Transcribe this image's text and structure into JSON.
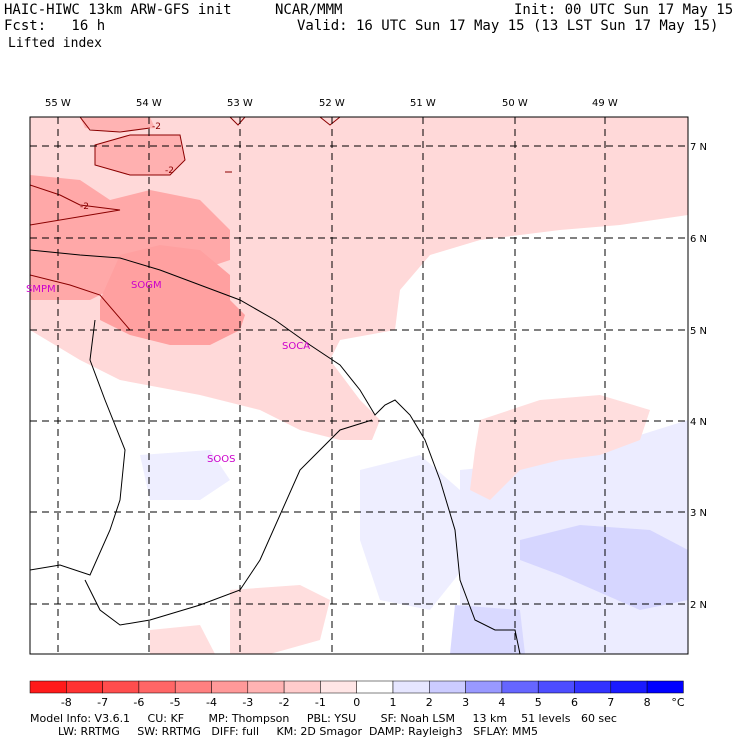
{
  "header": {
    "model": "HAIC-HIWC 13km ARW-GFS init",
    "org": "NCAR/MMM",
    "init": "Init: 00 UTC Sun 17 May 15",
    "fcst": "Fcst:   16 h",
    "valid": "Valid: 16 UTC Sun 17 May 15 (13 LST Sun 17 May 15)",
    "field": "Lifted index"
  },
  "map": {
    "lon_labels": [
      "55 W",
      "54 W",
      "53 W",
      "52 W",
      "51 W",
      "50 W",
      "49 W"
    ],
    "lat_labels": [
      "7 N",
      "6 N",
      "5 N",
      "4 N",
      "3 N",
      "2 N"
    ],
    "stations": [
      "SMPM",
      "SOGM",
      "SOCA",
      "SOOS"
    ],
    "contour_labels": [
      "-2",
      "-2",
      "-2"
    ]
  },
  "colorbar": {
    "labels": [
      "-8",
      "-7",
      "-6",
      "-5",
      "-4",
      "-3",
      "-2",
      "-1",
      "0",
      "1",
      "2",
      "3",
      "4",
      "5",
      "6",
      "7",
      "8"
    ],
    "unit": "°C",
    "colors": [
      "#ff1a1a",
      "#ff3333",
      "#ff4d4d",
      "#ff6666",
      "#ff8080",
      "#ff9999",
      "#ffb3b3",
      "#ffcccc",
      "#ffe6e6",
      "#ffffff",
      "#e6e6ff",
      "#ccccff",
      "#9999ff",
      "#6666ff",
      "#4d4dff",
      "#3333ff",
      "#1a1aff",
      "#0000ff"
    ]
  },
  "footer": {
    "line1": "Model Info: V3.6.1     CU: KF       MP: Thompson     PBL: YSU       SF: Noah LSM     13 km    51 levels   60 sec",
    "line2": "        LW: RRTMG     SW: RRTMG   DIFF: full     KM: 2D Smagor  DAMP: Rayleigh3   SFLAY: MM5"
  }
}
